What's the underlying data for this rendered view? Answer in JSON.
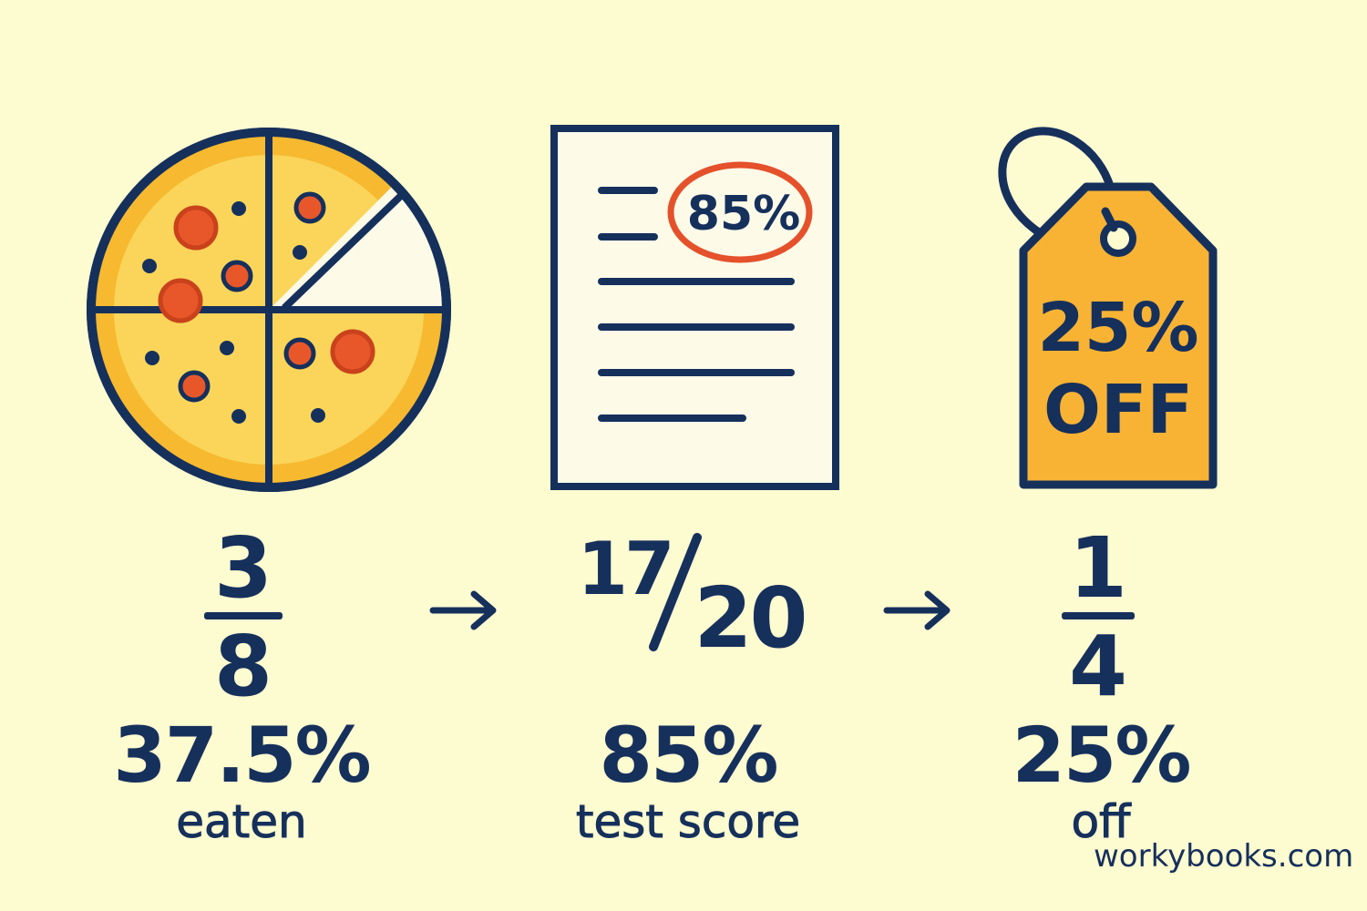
{
  "colors": {
    "background": "#fdfbd0",
    "navy": "#16305c",
    "cheese": "#fbd55a",
    "crust": "#f6b92f",
    "pepperoni": "#e8572a",
    "paper": "#fdfbe8",
    "tag": "#f8b335",
    "circle_mark": "#e4512b"
  },
  "panels": [
    {
      "icon": "pizza-icon",
      "fraction": {
        "numerator": "3",
        "denominator": "8"
      },
      "percent": "37.5%",
      "caption": "eaten"
    },
    {
      "icon": "test-paper-icon",
      "paper_mark": "85%",
      "fraction": {
        "numerator": "17",
        "denominator": "20"
      },
      "percent": "85%",
      "caption": "test score"
    },
    {
      "icon": "price-tag-icon",
      "tag_line1": "25%",
      "tag_line2": "OFF",
      "fraction": {
        "numerator": "1",
        "denominator": "4"
      },
      "percent": "25%",
      "caption": "off"
    }
  ],
  "watermark": "workybooks.com"
}
